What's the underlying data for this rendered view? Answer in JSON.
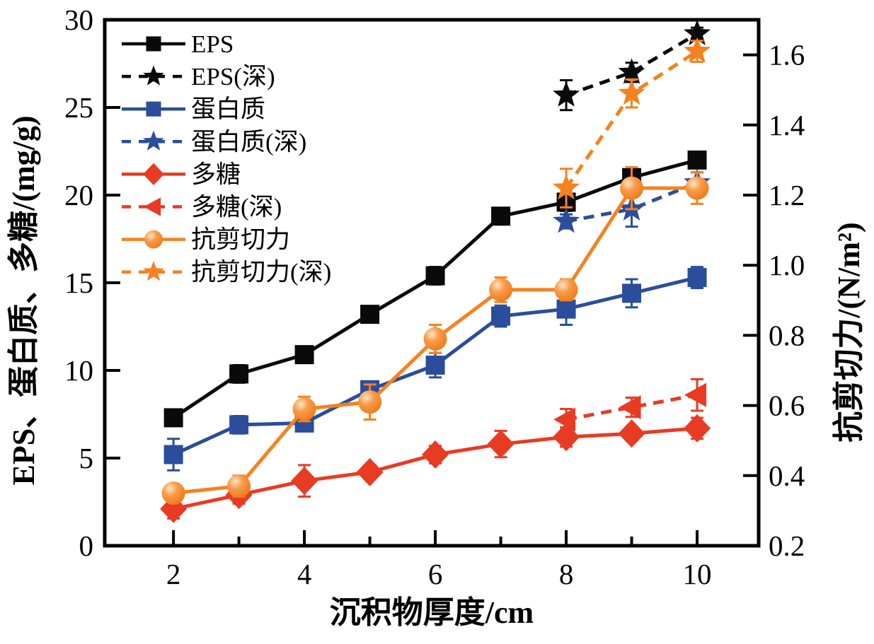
{
  "chart_data": {
    "type": "line",
    "title": "",
    "xlabel": "沉积物厚度/cm",
    "ylabel_left": "EPS、蛋白质、多糖/(mg/g)",
    "ylabel_right": "抗剪切力/(N/m²)",
    "grid": false,
    "legend_position": "upper-left-inside",
    "x_range": [
      0.95,
      10.94
    ],
    "y_left_range": [
      0,
      30
    ],
    "y_right_range": [
      0.2,
      1.7
    ],
    "x_ticks_major": [
      2,
      4,
      6,
      8,
      10
    ],
    "x_ticks_minor": [
      3,
      5,
      7,
      9
    ],
    "y_left_ticks": [
      0,
      5,
      10,
      15,
      20,
      25,
      30
    ],
    "y_right_ticks": [
      0.2,
      0.4,
      0.6,
      0.8,
      1.0,
      1.2,
      1.4,
      1.6
    ],
    "colors": {
      "black": "#0a0a0a",
      "blue": "#2b4d9c",
      "red": "#e83b24",
      "orange": "#f58220"
    },
    "series": [
      {
        "name": "EPS",
        "axis": "left",
        "color": "#0a0a0a",
        "line": "solid",
        "marker": "square",
        "x": [
          2,
          3,
          4,
          5,
          6,
          7,
          8,
          9,
          10
        ],
        "y": [
          7.3,
          9.8,
          10.9,
          13.2,
          15.4,
          18.8,
          19.6,
          21.0,
          22.0
        ],
        "err": [
          0.4,
          0.5,
          0.4,
          0.4,
          0.5,
          0.4,
          0.5,
          0.4,
          0.35
        ]
      },
      {
        "name": "EPS(深)",
        "axis": "left",
        "color": "#0a0a0a",
        "line": "dashed",
        "marker": "star",
        "x": [
          8,
          9,
          10
        ],
        "y": [
          25.7,
          27.0,
          29.2
        ],
        "err": [
          0.85,
          0.55,
          0.35
        ]
      },
      {
        "name": "蛋白质",
        "axis": "left",
        "color": "#2b4d9c",
        "line": "solid",
        "marker": "square",
        "x": [
          2,
          3,
          4,
          5,
          6,
          7,
          8,
          9,
          10
        ],
        "y": [
          5.2,
          6.9,
          7.0,
          8.9,
          10.3,
          13.1,
          13.5,
          14.4,
          15.3
        ],
        "err": [
          0.9,
          0.5,
          0.35,
          0.45,
          0.7,
          0.6,
          0.9,
          0.8,
          0.6
        ]
      },
      {
        "name": "蛋白质(深)",
        "axis": "left",
        "color": "#2b4d9c",
        "line": "dashed",
        "marker": "star",
        "x": [
          8,
          9,
          10
        ],
        "y": [
          18.5,
          19.2,
          20.7
        ],
        "err": [
          0.4,
          1.0,
          0.6
        ]
      },
      {
        "name": "多糖",
        "axis": "left",
        "color": "#e83b24",
        "line": "solid",
        "marker": "diamond",
        "x": [
          2,
          3,
          4,
          5,
          6,
          7,
          8,
          9,
          10
        ],
        "y": [
          2.1,
          2.9,
          3.7,
          4.2,
          5.2,
          5.8,
          6.2,
          6.4,
          6.7
        ],
        "err": [
          0.55,
          0.5,
          0.9,
          0.4,
          0.5,
          0.75,
          0.55,
          0.4,
          0.6
        ]
      },
      {
        "name": "多糖(深)",
        "axis": "left",
        "color": "#e83b24",
        "line": "dashed",
        "marker": "triangle-left",
        "x": [
          8,
          9,
          10
        ],
        "y": [
          7.2,
          7.9,
          8.6
        ],
        "err": [
          0.6,
          0.55,
          0.9
        ]
      },
      {
        "name": "抗剪切力",
        "axis": "right",
        "color": "#f58220",
        "line": "solid",
        "marker": "sphere",
        "x": [
          2,
          3,
          4,
          5,
          6,
          7,
          8,
          9,
          10
        ],
        "y": [
          0.35,
          0.37,
          0.59,
          0.61,
          0.79,
          0.93,
          0.93,
          1.22,
          1.22
        ],
        "err": [
          0.025,
          0.03,
          0.035,
          0.05,
          0.04,
          0.035,
          0.03,
          0.06,
          0.045
        ]
      },
      {
        "name": "抗剪切力(深)",
        "axis": "right",
        "color": "#f58220",
        "line": "dashed",
        "marker": "star",
        "x": [
          8,
          9,
          10
        ],
        "y": [
          1.22,
          1.49,
          1.61
        ],
        "err": [
          0.055,
          0.04,
          0.03
        ]
      }
    ]
  }
}
